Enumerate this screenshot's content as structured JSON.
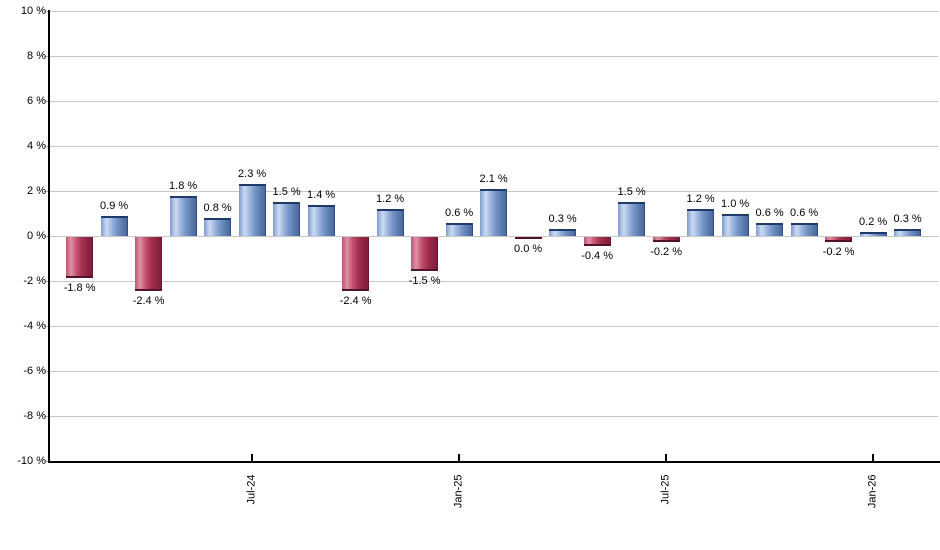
{
  "chart_data": {
    "type": "bar",
    "title": "",
    "xlabel": "",
    "ylabel": "",
    "ylim": [
      -10,
      10
    ],
    "grid": true,
    "legend": false,
    "y_ticks": [
      "10 %",
      "8 %",
      "6 %",
      "4 %",
      "2 %",
      "0 %",
      "-2 %",
      "-4 %",
      "-6 %",
      "-8 %",
      "-10 %"
    ],
    "y_tick_values": [
      10,
      8,
      6,
      4,
      2,
      0,
      -2,
      -4,
      -6,
      -8,
      -10
    ],
    "x_ticks": [
      {
        "label": "Jul-24",
        "bar_index": 5
      },
      {
        "label": "Jan-25",
        "bar_index": 11
      },
      {
        "label": "Jul-25",
        "bar_index": 17
      },
      {
        "label": "Jan-26",
        "bar_index": 23
      }
    ],
    "bars": [
      {
        "label": "-1.8 %",
        "value": -1.8
      },
      {
        "label": "0.9 %",
        "value": 0.9
      },
      {
        "label": "-2.4 %",
        "value": -2.4
      },
      {
        "label": "1.8 %",
        "value": 1.8
      },
      {
        "label": "0.8 %",
        "value": 0.8
      },
      {
        "label": "2.3 %",
        "value": 2.3
      },
      {
        "label": "1.5 %",
        "value": 1.5
      },
      {
        "label": "1.4 %",
        "value": 1.4
      },
      {
        "label": "-2.4 %",
        "value": -2.4
      },
      {
        "label": "1.2 %",
        "value": 1.2
      },
      {
        "label": "-1.5 %",
        "value": -1.5
      },
      {
        "label": "0.6 %",
        "value": 0.6
      },
      {
        "label": "2.1 %",
        "value": 2.1
      },
      {
        "label": "0.0 %",
        "value": 0.0,
        "negative": true
      },
      {
        "label": "0.3 %",
        "value": 0.3
      },
      {
        "label": "-0.4 %",
        "value": -0.4
      },
      {
        "label": "1.5 %",
        "value": 1.5
      },
      {
        "label": "-0.2 %",
        "value": -0.2
      },
      {
        "label": "1.2 %",
        "value": 1.2
      },
      {
        "label": "1.0 %",
        "value": 1.0
      },
      {
        "label": "0.6 %",
        "value": 0.6
      },
      {
        "label": "0.6 %",
        "value": 0.6
      },
      {
        "label": "-0.2 %",
        "value": -0.2
      },
      {
        "label": "0.2 %",
        "value": 0.2
      },
      {
        "label": "0.3 %",
        "value": 0.3
      }
    ],
    "colors": {
      "positive_bar": "#7796c7",
      "positive_bar_border": "#1d3a68",
      "negative_bar": "#b53a58",
      "negative_bar_border": "#551129",
      "grid_line": "#c8c8c8",
      "axis_line": "#000000",
      "label_text": "#000000",
      "background": "#ffffff"
    }
  }
}
